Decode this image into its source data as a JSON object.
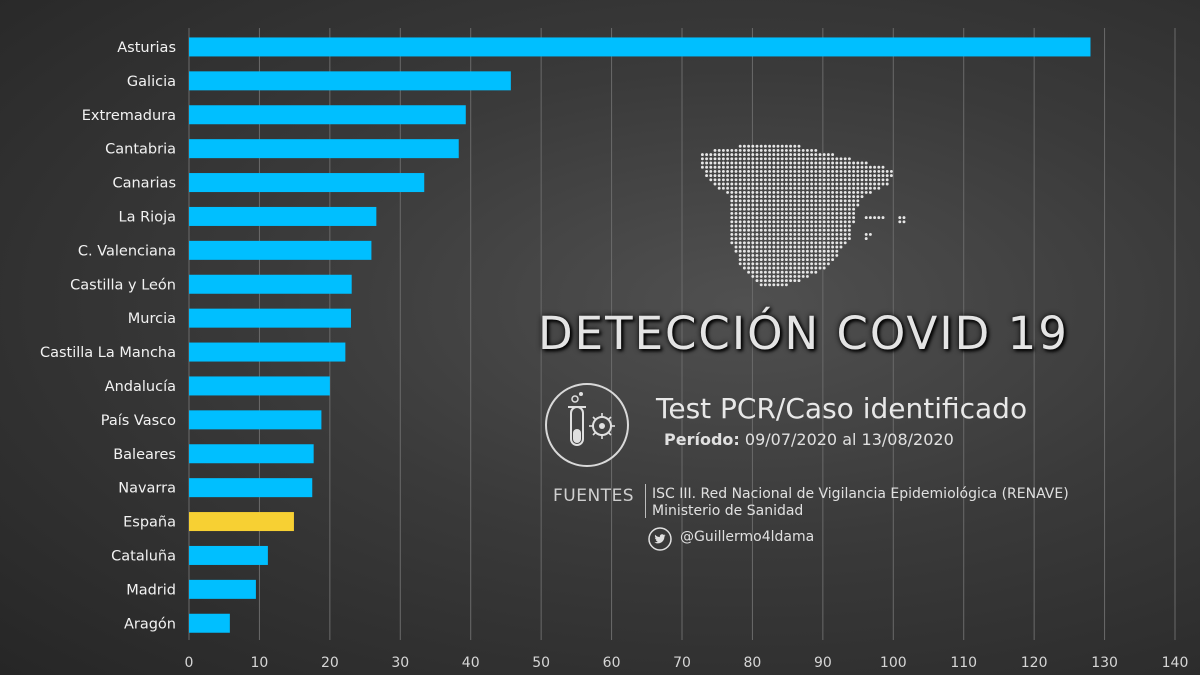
{
  "chart_data": {
    "type": "bar",
    "orientation": "horizontal",
    "categories": [
      "Asturias",
      "Galicia",
      "Extremadura",
      "Cantabria",
      "Canarias",
      "La Rioja",
      "C. Valenciana",
      "Castilla y León",
      "Murcia",
      "Castilla La Mancha",
      "Andalucía",
      "País Vasco",
      "Baleares",
      "Navarra",
      "España",
      "Cataluña",
      "Madrid",
      "Aragón"
    ],
    "values": [
      128,
      45.7,
      39.3,
      38.3,
      33.4,
      26.6,
      25.9,
      23.1,
      23.0,
      22.2,
      20.0,
      18.8,
      17.7,
      17.5,
      14.9,
      11.2,
      9.5,
      5.8
    ],
    "highlight": "España",
    "xlim": [
      0,
      140
    ],
    "xticks": [
      0,
      10,
      20,
      30,
      40,
      50,
      60,
      70,
      80,
      90,
      100,
      110,
      120,
      130,
      140
    ],
    "grid": true,
    "bar_color": "#00bfff",
    "highlight_color": "#f7d033"
  },
  "header": {
    "title": "DETECCIÓN COVID 19",
    "subtitle": "Test PCR/Caso identificado",
    "period_label": "Período:",
    "period_value": " 09/07/2020 al 13/08/2020"
  },
  "sources": {
    "label": "FUENTES",
    "items": [
      "ISC III. Red Nacional de Vigilancia Epidemiológica (RENAVE)",
      "Ministerio de Sanidad"
    ]
  },
  "author": {
    "handle": "@Guillermo4ldama",
    "icon": "twitter-icon"
  }
}
